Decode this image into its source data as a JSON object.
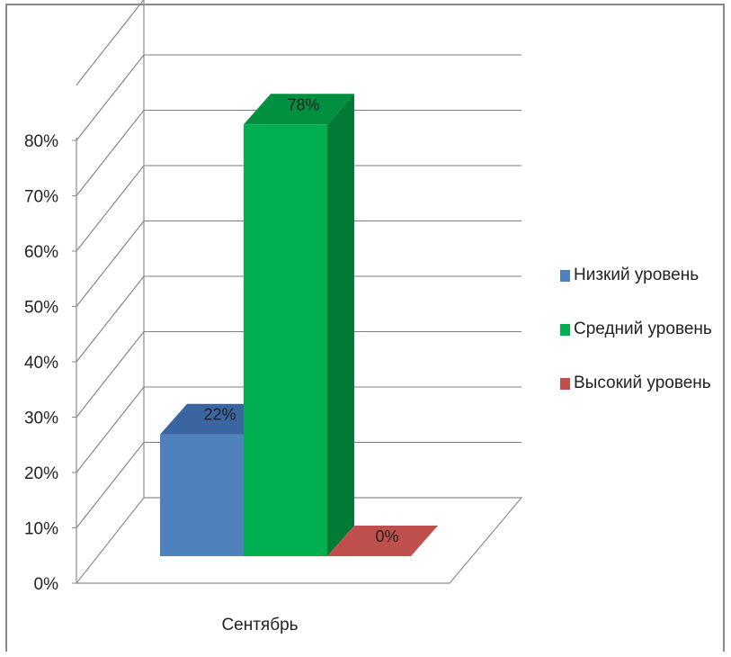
{
  "chart_data": {
    "type": "bar",
    "categories": [
      "Сентябрь"
    ],
    "series": [
      {
        "name": "Низкий уровень",
        "values": [
          22
        ],
        "color": "#4f81bd",
        "top_color": "#3a65a0",
        "side_color": "#35609a",
        "label": "22%"
      },
      {
        "name": "Средний уровень",
        "values": [
          78
        ],
        "color": "#00b050",
        "top_color": "#009040",
        "side_color": "#007a35",
        "label": "78%"
      },
      {
        "name": "Высокий уровень",
        "values": [
          0
        ],
        "color": "#c0504d",
        "top_color": "#a8403d",
        "side_color": "#943634",
        "label": "0%"
      }
    ],
    "ylim": [
      0,
      80
    ],
    "yticks": [
      "0%",
      "10%",
      "20%",
      "30%",
      "40%",
      "50%",
      "60%",
      "70%",
      "80%"
    ],
    "legend": "right",
    "grid": true
  }
}
